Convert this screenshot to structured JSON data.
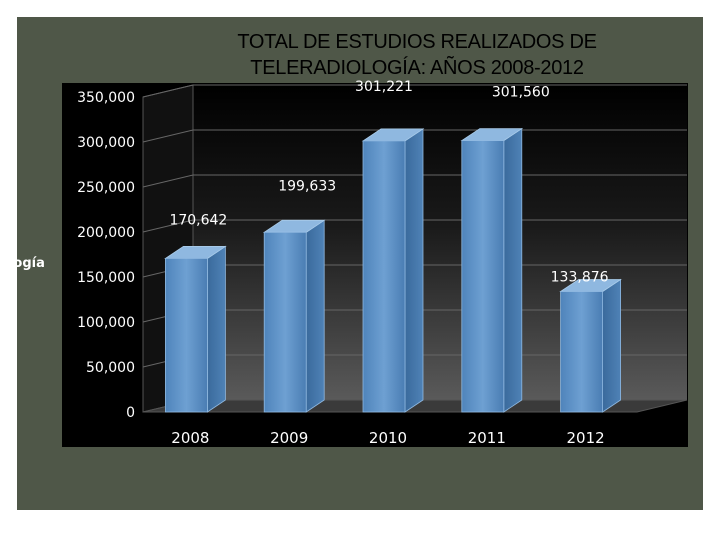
{
  "chart_data": {
    "type": "bar",
    "title_lines": [
      "TOTAL DE ESTUDIOS REALIZADOS DE",
      "TELERADIOLOGÍA: AÑOS 2008-2012"
    ],
    "ylabel": "ología",
    "xlabel": "",
    "categories": [
      "2008",
      "2009",
      "2010",
      "2011",
      "2012"
    ],
    "values": [
      170642,
      199633,
      301221,
      301560,
      133876
    ],
    "data_labels": [
      "170,642",
      "199,633",
      "301,221",
      "301,560",
      "133,876"
    ],
    "yticks": [
      0,
      50000,
      100000,
      150000,
      200000,
      250000,
      300000,
      350000
    ],
    "ytick_labels": [
      "0",
      "50,000",
      "100,000",
      "150,000",
      "200,000",
      "250,000",
      "300,000",
      "350,000"
    ],
    "ylim": [
      0,
      350000
    ],
    "grid": true,
    "legend": "none",
    "colors": {
      "background": "#4f5748",
      "bar": "#5b8fc4",
      "bar_top": "#8fb8e0",
      "bar_side": "#3d6fa3",
      "text": "#ffffff",
      "grid": "#6a6a6a"
    }
  }
}
